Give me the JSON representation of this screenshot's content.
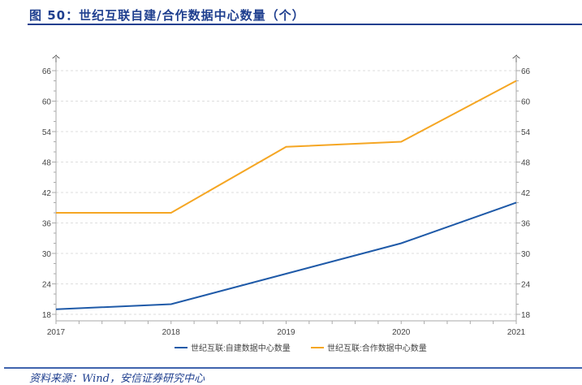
{
  "header": {
    "title": "图 50：世纪互联自建/合作数据中心数量（个）"
  },
  "footer": {
    "source": "资料来源：Wind，安信证券研究中心"
  },
  "chart_data": {
    "type": "line",
    "title": "",
    "categories": [
      "2017",
      "2018",
      "2019",
      "2020",
      "2021"
    ],
    "y_unit_left": "个",
    "y_unit_right": "个",
    "ylim": [
      16.7,
      66
    ],
    "yticks": [
      18,
      24,
      30,
      36,
      42,
      48,
      54,
      60,
      66
    ],
    "grid": true,
    "legend_position": "bottom",
    "series": [
      {
        "name": "世纪互联:自建数据中心数量",
        "color": "#1f5aa8",
        "values": [
          19,
          20,
          26,
          32,
          40
        ]
      },
      {
        "name": "世纪互联:合作数据中心数量",
        "color": "#f5a623",
        "values": [
          38,
          38,
          51,
          52,
          64
        ]
      }
    ]
  }
}
